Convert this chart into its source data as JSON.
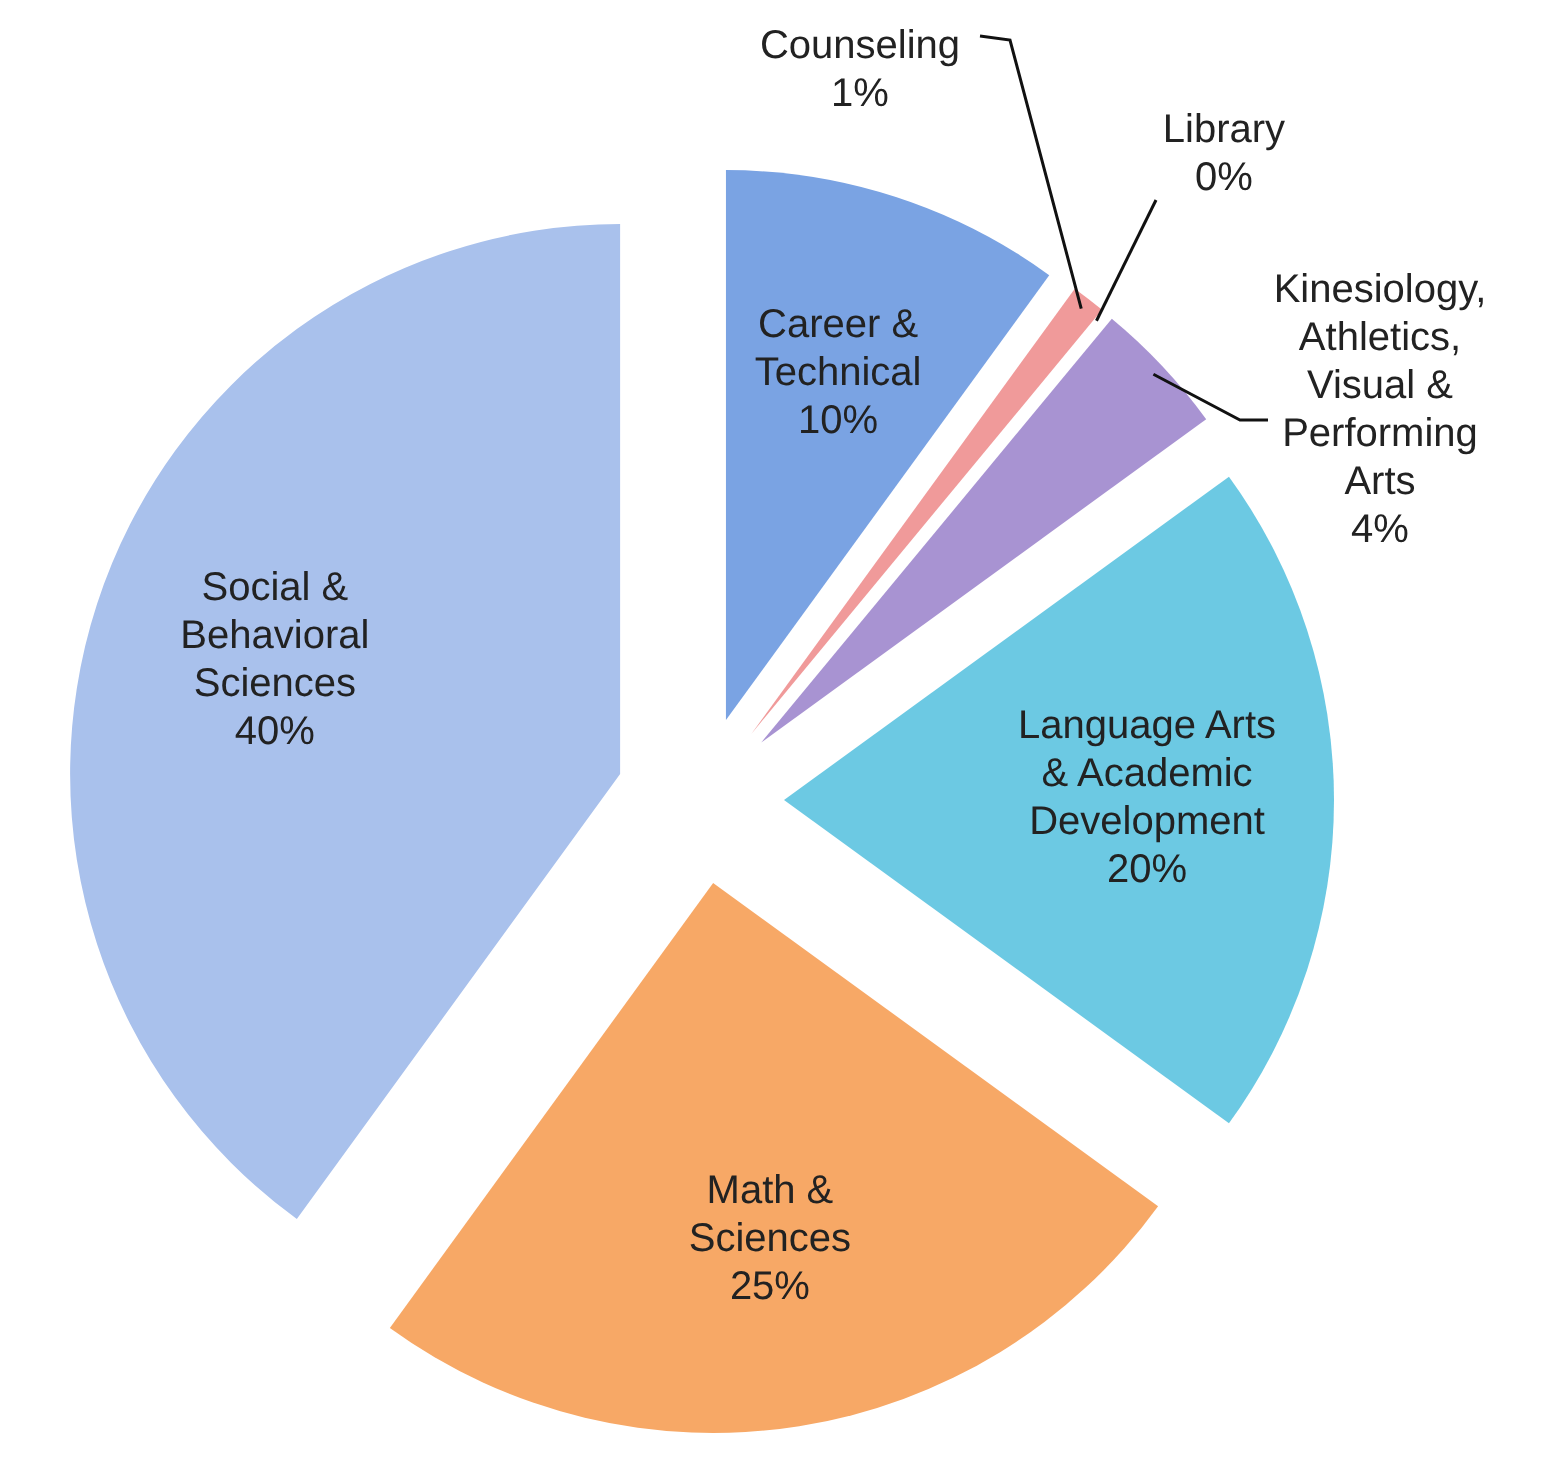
{
  "chart_data": {
    "type": "pie",
    "categories": [
      "Career & Technical",
      "Counseling",
      "Library",
      "Kinesiology, Athletics, Visual & Performing Arts",
      "Language Arts & Academic Development",
      "Math & Sciences",
      "Social & Behavioral Sciences"
    ],
    "values": [
      10,
      1,
      0,
      4,
      20,
      25,
      40
    ],
    "colors": [
      "#7aa3e3",
      "#f09a9a",
      "#d9534f",
      "#a893d2",
      "#6cc9e3",
      "#f7a866",
      "#a9c1ec"
    ],
    "value_labels": [
      "10%",
      "1%",
      "0%",
      "4%",
      "20%",
      "25%",
      "40%"
    ]
  }
}
